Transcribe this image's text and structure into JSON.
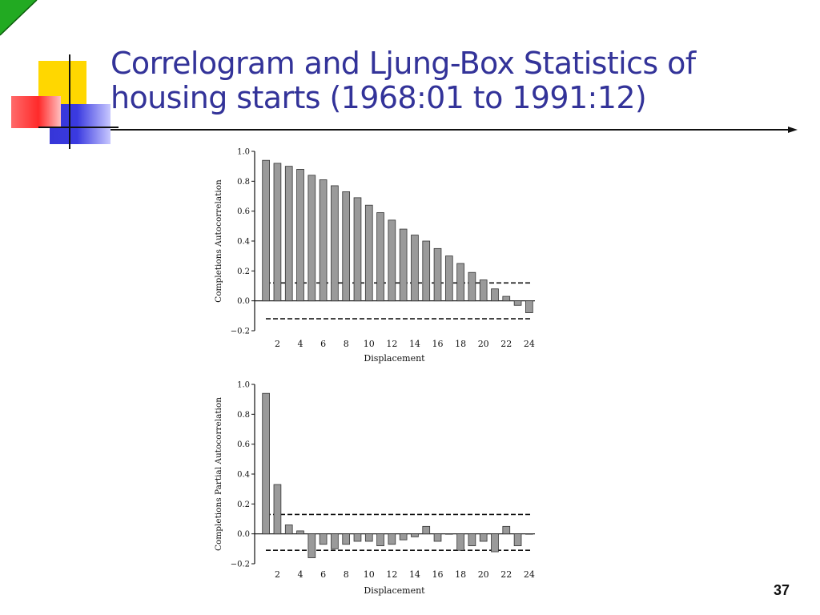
{
  "slide": {
    "title": "Correlogram and Ljung-Box Statistics of housing starts (1968:01 to 1991:12)",
    "page_number": "37"
  },
  "colors": {
    "title": "#333399",
    "accent_yellow": "#ffd700",
    "accent_red": "#ff3333",
    "accent_blue": "#3333cc",
    "corner": "#22aa22",
    "bar_fill": "#9a9a9a"
  },
  "chart_data": [
    {
      "type": "bar",
      "ylabel": "Completions Autocorrelation",
      "xlabel": "Displacement",
      "ylim": [
        -0.2,
        1.0
      ],
      "yticks": [
        "1.0",
        "0.8",
        "0.6",
        "0.4",
        "0.2",
        "0.0",
        "−0.2"
      ],
      "xticks": [
        "2",
        "4",
        "6",
        "8",
        "10",
        "12",
        "14",
        "16",
        "18",
        "20",
        "22",
        "24"
      ],
      "confidence_band": [
        0.12,
        -0.12
      ],
      "x": [
        1,
        2,
        3,
        4,
        5,
        6,
        7,
        8,
        9,
        10,
        11,
        12,
        13,
        14,
        15,
        16,
        17,
        18,
        19,
        20,
        21,
        22,
        23,
        24
      ],
      "values": [
        0.94,
        0.92,
        0.9,
        0.88,
        0.84,
        0.81,
        0.77,
        0.73,
        0.69,
        0.64,
        0.59,
        0.54,
        0.48,
        0.44,
        0.4,
        0.35,
        0.3,
        0.25,
        0.19,
        0.14,
        0.08,
        0.03,
        -0.03,
        -0.08
      ],
      "grid": false
    },
    {
      "type": "bar",
      "ylabel": "Completions Partial Autocorrelation",
      "xlabel": "Displacement",
      "ylim": [
        -0.2,
        1.0
      ],
      "yticks": [
        "1.0",
        "0.8",
        "0.6",
        "0.4",
        "0.2",
        "0.0",
        "−0.2"
      ],
      "xticks": [
        "2",
        "4",
        "6",
        "8",
        "10",
        "12",
        "14",
        "16",
        "18",
        "20",
        "22",
        "24"
      ],
      "confidence_band": [
        0.13,
        -0.11
      ],
      "x": [
        1,
        2,
        3,
        4,
        5,
        6,
        7,
        8,
        9,
        10,
        11,
        12,
        13,
        14,
        15,
        16,
        17,
        18,
        19,
        20,
        21,
        22,
        23,
        24
      ],
      "values": [
        0.94,
        0.33,
        0.06,
        0.02,
        -0.16,
        -0.07,
        -0.1,
        -0.07,
        -0.05,
        -0.05,
        -0.08,
        -0.07,
        -0.04,
        -0.02,
        0.05,
        -0.05,
        0.0,
        -0.11,
        -0.08,
        -0.05,
        -0.12,
        0.05,
        -0.08,
        0.0
      ],
      "grid": false
    }
  ]
}
